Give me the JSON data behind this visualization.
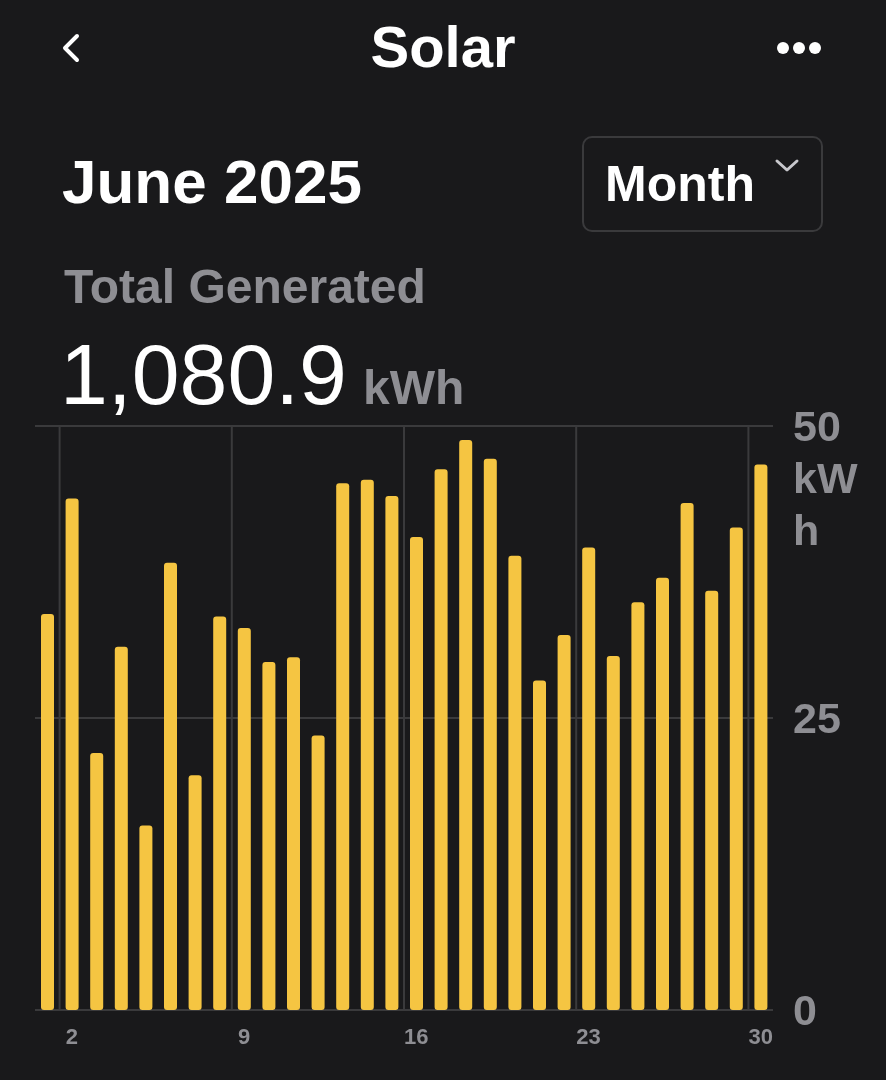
{
  "chart_data": {
    "type": "bar",
    "title": "Solar",
    "subtitle": "June 2025",
    "annotations": [
      "Month",
      "Total Generated",
      "1,080.9 kWh"
    ],
    "ylabel": "kWh",
    "categories": [
      null,
      "2",
      null,
      null,
      null,
      null,
      null,
      null,
      "9",
      null,
      null,
      null,
      null,
      null,
      null,
      "16",
      null,
      null,
      null,
      null,
      null,
      null,
      "23",
      null,
      null,
      null,
      null,
      null,
      null,
      "30"
    ],
    "values": [
      33.9,
      43.8,
      22.0,
      31.1,
      15.8,
      38.3,
      20.1,
      33.7,
      32.7,
      29.8,
      30.2,
      23.5,
      45.1,
      45.4,
      44.0,
      40.5,
      46.3,
      48.8,
      47.2,
      38.9,
      28.2,
      32.1,
      39.6,
      30.3,
      34.9,
      37.0,
      43.4,
      35.9,
      41.3,
      46.7
    ],
    "color": "#f5c542",
    "ylim": [
      0,
      50
    ],
    "yticks": [
      0,
      25,
      50
    ],
    "grid": true
  }
}
